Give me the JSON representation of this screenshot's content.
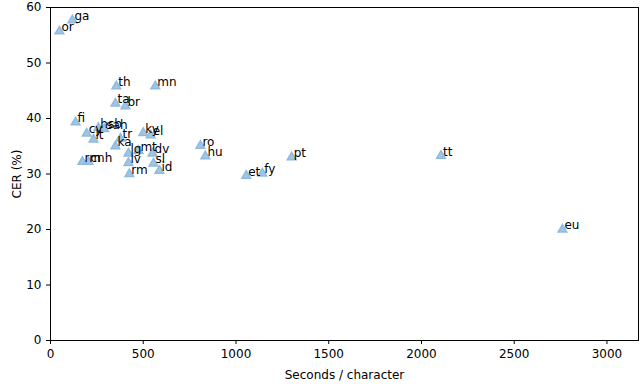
{
  "chart_data": {
    "type": "scatter",
    "x_label": "Seconds / character",
    "y_label": "CER (%)",
    "xlim": [
      0,
      3170
    ],
    "ylim": [
      0,
      60
    ],
    "xticks": [
      0,
      500,
      1000,
      1500,
      2000,
      2500,
      3000
    ],
    "yticks": [
      0,
      10,
      20,
      30,
      40,
      50,
      60
    ],
    "grid": false,
    "color": "#8fbbe0",
    "marker": "triangle",
    "points": [
      {
        "label": "ga",
        "x": 118,
        "y": 57.7
      },
      {
        "label": "or",
        "x": 48,
        "y": 55.7
      },
      {
        "label": "th",
        "x": 355,
        "y": 45.8
      },
      {
        "label": "mn",
        "x": 565,
        "y": 45.8
      },
      {
        "label": "ta",
        "x": 350,
        "y": 42.7
      },
      {
        "label": "br",
        "x": 404,
        "y": 42.2
      },
      {
        "label": "fi",
        "x": 135,
        "y": 39.3
      },
      {
        "label": "hsb",
        "x": 258,
        "y": 38.3
      },
      {
        "label": "sah",
        "x": 290,
        "y": 38.1
      },
      {
        "label": "cy",
        "x": 195,
        "y": 37.3
      },
      {
        "label": "lt",
        "x": 232,
        "y": 36.2
      },
      {
        "label": "ky",
        "x": 500,
        "y": 37.4
      },
      {
        "label": "el",
        "x": 540,
        "y": 37.0
      },
      {
        "label": "tr",
        "x": 377,
        "y": 36.4
      },
      {
        "label": "ka",
        "x": 350,
        "y": 35.0
      },
      {
        "label": "ro",
        "x": 808,
        "y": 35.1
      },
      {
        "label": "hu",
        "x": 835,
        "y": 33.2
      },
      {
        "label": "lg",
        "x": 420,
        "y": 33.7
      },
      {
        "label": "mt",
        "x": 474,
        "y": 34.2
      },
      {
        "label": "dv",
        "x": 550,
        "y": 33.7
      },
      {
        "label": "pt",
        "x": 1300,
        "y": 33.0
      },
      {
        "label": "tt",
        "x": 2105,
        "y": 33.3
      },
      {
        "label": "rm",
        "x": 172,
        "y": 32.2
      },
      {
        "label": "cnh",
        "x": 205,
        "y": 32.2
      },
      {
        "label": "lv",
        "x": 420,
        "y": 32.0
      },
      {
        "label": "sl",
        "x": 555,
        "y": 31.9
      },
      {
        "label": "id",
        "x": 587,
        "y": 30.6
      },
      {
        "label": "rm",
        "x": 425,
        "y": 30.0
      },
      {
        "label": "et",
        "x": 1055,
        "y": 29.7
      },
      {
        "label": "fy",
        "x": 1142,
        "y": 30.1
      },
      {
        "label": "eu",
        "x": 2760,
        "y": 20.0
      }
    ]
  }
}
